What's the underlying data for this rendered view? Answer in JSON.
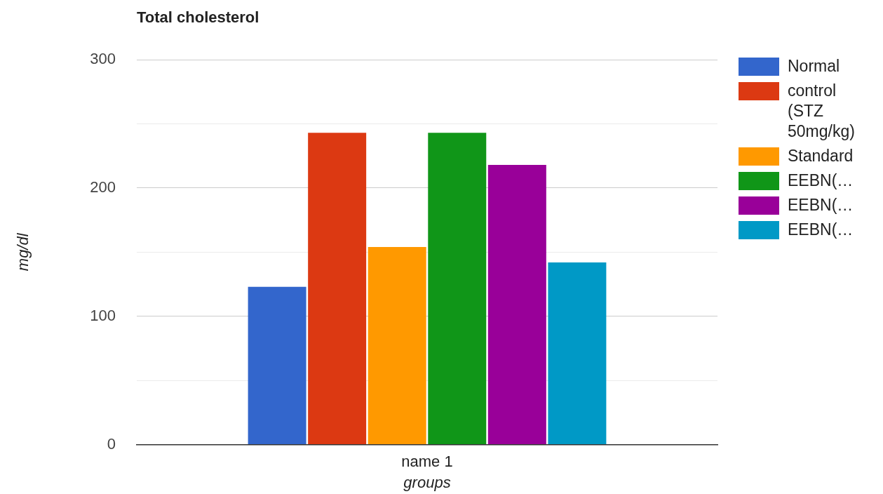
{
  "chart_data": {
    "type": "bar",
    "title": "Total cholesterol",
    "xlabel": "groups",
    "ylabel": "mg/dl",
    "categories": [
      "name 1"
    ],
    "series": [
      {
        "name": "Normal",
        "color": "#3366cc",
        "values": [
          123
        ]
      },
      {
        "name": "control (STZ 50mg/kg)",
        "color": "#dc3912",
        "values": [
          243
        ]
      },
      {
        "name": "Standard",
        "color": "#ff9900",
        "values": [
          154
        ]
      },
      {
        "name": "EEBN(…",
        "color": "#109618",
        "values": [
          243
        ]
      },
      {
        "name": "EEBN(…",
        "color": "#990099",
        "values": [
          218
        ]
      },
      {
        "name": "EEBN(…",
        "color": "#0099c6",
        "values": [
          142
        ]
      }
    ],
    "ylim": [
      0,
      300
    ],
    "yticks": [
      0,
      {
        "value": 50,
        "label": null
      },
      100,
      {
        "value": 150,
        "label": null
      },
      200,
      {
        "value": 250,
        "label": null
      },
      300
    ],
    "grid": "y",
    "legend": "right"
  }
}
